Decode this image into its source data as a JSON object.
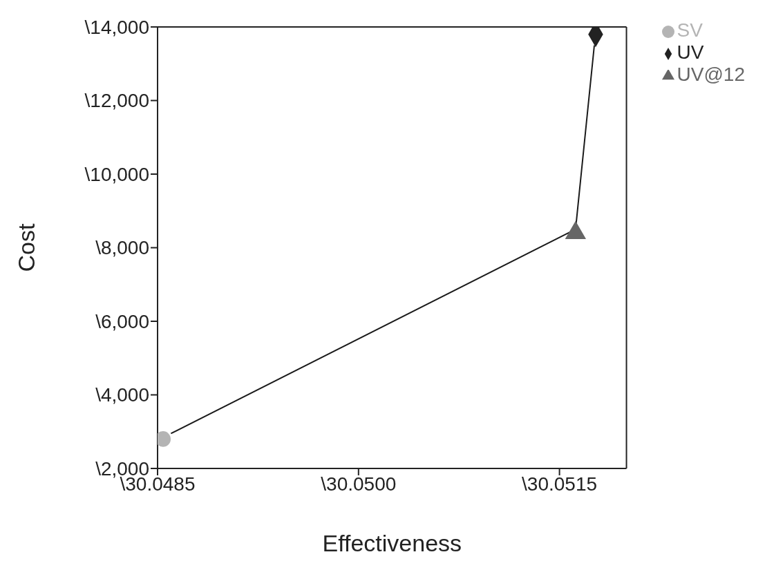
{
  "chart_data": {
    "type": "scatter",
    "xlabel": "Effectiveness",
    "ylabel": "Cost",
    "xlim": [
      30.0485,
      30.052
    ],
    "xticks": [
      {
        "value": 30.0485,
        "label": "\\30.0485"
      },
      {
        "value": 30.05,
        "label": "\\30.0500"
      },
      {
        "value": 30.0515,
        "label": "\\30.0515"
      }
    ],
    "ylim": [
      2000,
      14000
    ],
    "yticks": [
      {
        "value": 2000,
        "label": "\\2,000"
      },
      {
        "value": 4000,
        "label": "\\4,000"
      },
      {
        "value": 6000,
        "label": "\\6,000"
      },
      {
        "value": 8000,
        "label": "\\8,000"
      },
      {
        "value": 10000,
        "label": "\\10,000"
      },
      {
        "value": 12000,
        "label": "\\12,000"
      },
      {
        "value": 14000,
        "label": "\\14,000"
      }
    ],
    "grid": false,
    "legend": "top right",
    "series": [
      {
        "type": "line",
        "color": "#1a1a1a",
        "marker": "none",
        "line_style": "solid",
        "x": [
          30.0486,
          30.05162,
          30.05176
        ],
        "values": [
          2950,
          8500,
          13500
        ]
      },
      {
        "name": "SV",
        "color": "#b4b4b4",
        "marker": "circle",
        "x": [
          30.04854
        ],
        "values": [
          2800
        ]
      },
      {
        "name": "UV",
        "color": "#222222",
        "marker": "diamond",
        "x": [
          30.05177
        ],
        "values": [
          13800
        ]
      },
      {
        "name": "UV@12",
        "color": "#666666",
        "marker": "triangle",
        "x": [
          30.05162
        ],
        "values": [
          8400
        ]
      }
    ]
  }
}
